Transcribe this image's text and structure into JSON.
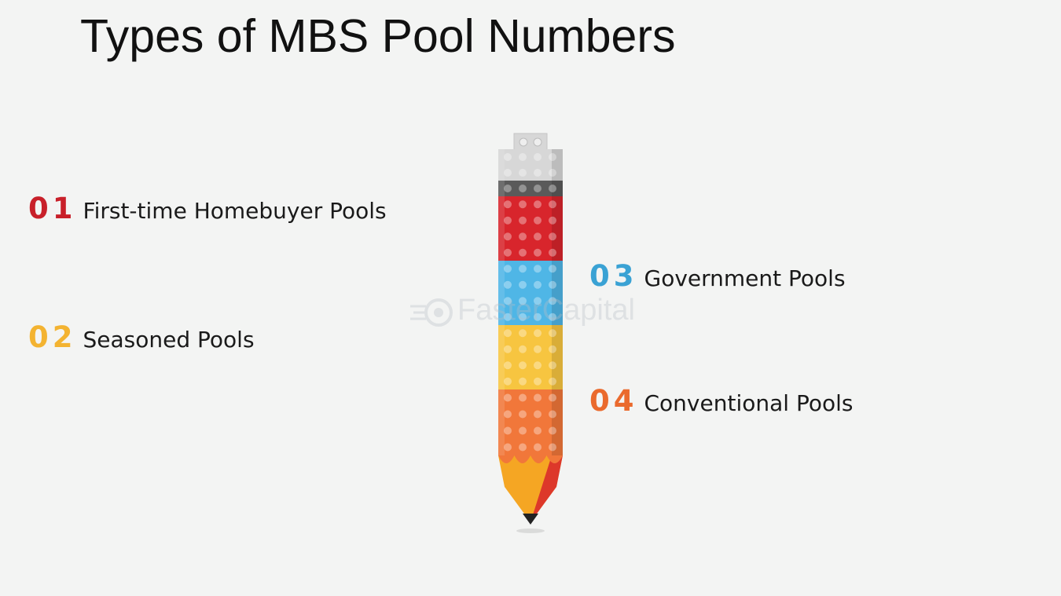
{
  "title": "Types of MBS Pool Numbers",
  "items": [
    {
      "number": "01",
      "label": "First-time Homebuyer Pools",
      "color": "#c8202a"
    },
    {
      "number": "02",
      "label": "Seasoned Pools",
      "color": "#f3b331"
    },
    {
      "number": "03",
      "label": "Government Pools",
      "color": "#3aa2d4"
    },
    {
      "number": "04",
      "label": "Conventional Pools",
      "color": "#ea6a2d"
    }
  ],
  "watermark": "FasterCapital",
  "pencil": {
    "segment_colors": [
      "#d7d7d7",
      "#5a5a5a",
      "#d8252c",
      "#4fb6e6",
      "#f7c540",
      "#f1773a"
    ],
    "tip_wood": "#f5a623",
    "tip_lead": "#222222"
  }
}
